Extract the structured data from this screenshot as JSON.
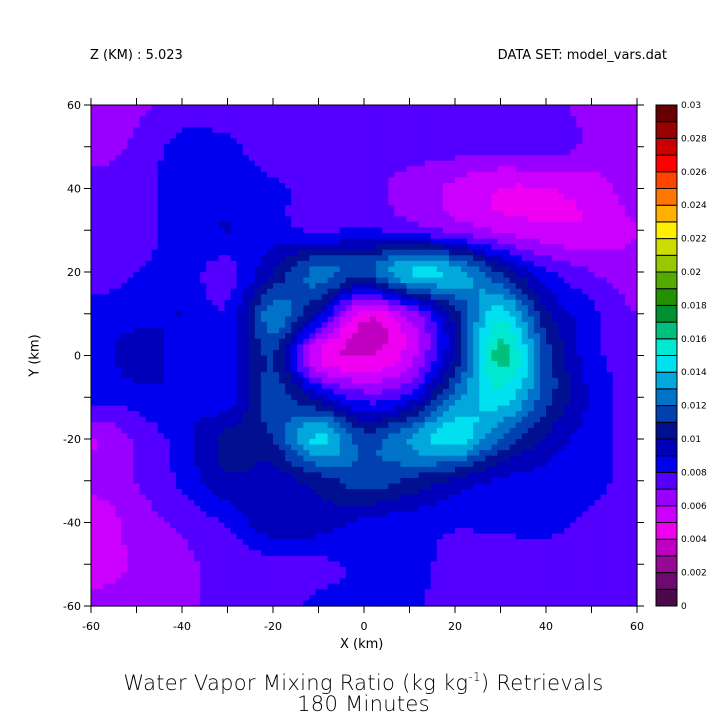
{
  "header": {
    "left": "Z (KM) : 5.023",
    "right": "DATA SET: model_vars.dat"
  },
  "chart_data": {
    "type": "heatmap",
    "subtype": "filled-contour",
    "title": "Water Vapor Mixing Ratio (kg kg-1) Retrievals",
    "title_parts": [
      "Water Vapor Mixing Ratio (kg kg",
      "-1",
      ") Retrievals"
    ],
    "subtitle": "180 Minutes",
    "xlabel": "X (km)",
    "ylabel": "Y (km)",
    "xlim": [
      -60,
      60
    ],
    "ylim": [
      -60,
      60
    ],
    "x_tick_labels": [
      "-60",
      "-40",
      "-20",
      "0",
      "20",
      "40",
      "60"
    ],
    "y_tick_labels": [
      "60",
      "40",
      "20",
      "0",
      "-20",
      "-40",
      "-60"
    ],
    "grid_x": [
      -60,
      -50,
      -40,
      -30,
      -20,
      -10,
      0,
      10,
      20,
      30,
      40,
      50,
      60
    ],
    "grid_y": [
      60,
      50,
      40,
      30,
      20,
      10,
      0,
      -10,
      -20,
      -30,
      -40,
      -50,
      -60
    ],
    "z_scale": 0.001,
    "z_grid_thousandths": [
      [
        6.5,
        6.8,
        7.5,
        7.5,
        7.5,
        8.0,
        7.5,
        7.5,
        7.5,
        7.5,
        7.5,
        6.5,
        6.5
      ],
      [
        6.5,
        7.2,
        8.3,
        8.2,
        7.5,
        7.5,
        7.5,
        7.5,
        7.4,
        7.3,
        7.5,
        6.8,
        6.5
      ],
      [
        7.5,
        7.6,
        8.6,
        8.4,
        8.2,
        7.5,
        7.3,
        6.6,
        5.8,
        5.0,
        5.0,
        5.5,
        6.5
      ],
      [
        7.5,
        7.5,
        8.5,
        9.0,
        8.5,
        7.8,
        8.2,
        7.6,
        6.8,
        5.8,
        5.3,
        5.2,
        6.0
      ],
      [
        7.5,
        8.0,
        8.5,
        7.6,
        10.0,
        12.3,
        11.5,
        14.0,
        13.6,
        10.8,
        8.2,
        7.0,
        6.4
      ],
      [
        8.3,
        8.6,
        9.0,
        8.2,
        12.5,
        9.5,
        4.5,
        6.5,
        10.5,
        14.5,
        10.2,
        8.3,
        7.0
      ],
      [
        8.3,
        9.5,
        8.6,
        8.4,
        11.0,
        5.0,
        4.0,
        5.5,
        10.2,
        16.3,
        11.5,
        8.4,
        7.6
      ],
      [
        8.2,
        8.5,
        9.0,
        8.5,
        11.5,
        9.5,
        7.5,
        8.5,
        12.5,
        14.5,
        11.5,
        8.8,
        7.6
      ],
      [
        6.0,
        7.2,
        8.5,
        10.3,
        11.0,
        14.2,
        11.5,
        13.0,
        14.5,
        12.0,
        9.8,
        8.5,
        7.6
      ],
      [
        6.3,
        7.0,
        8.2,
        9.8,
        9.5,
        10.5,
        11.5,
        10.8,
        9.8,
        8.8,
        8.6,
        8.3,
        7.6
      ],
      [
        5.2,
        6.5,
        7.2,
        8.2,
        9.8,
        9.6,
        8.8,
        8.5,
        8.2,
        8.2,
        8.3,
        7.8,
        7.5
      ],
      [
        5.3,
        6.2,
        6.8,
        7.3,
        7.6,
        7.8,
        8.2,
        8.4,
        7.6,
        7.5,
        7.5,
        7.5,
        7.5
      ],
      [
        6.5,
        6.4,
        6.8,
        7.4,
        7.6,
        8.2,
        8.3,
        8.2,
        7.5,
        7.5,
        7.4,
        7.4,
        7.4
      ]
    ],
    "colorbar": {
      "levels_min": 0,
      "levels_max": 0.03,
      "level_step": 0.001,
      "labels": [
        "0",
        "0.002",
        "0.004",
        "0.006",
        "0.008",
        "0.01",
        "0.012",
        "0.014",
        "0.016",
        "0.018",
        "0.02",
        "0.022",
        "0.024",
        "0.026",
        "0.028",
        "0.03"
      ],
      "colors": [
        "#4a0a4a",
        "#6e0a6e",
        "#960896",
        "#c000c0",
        "#f000f0",
        "#cc00ff",
        "#9900ff",
        "#5500ff",
        "#0000ee",
        "#0000bb",
        "#001090",
        "#0040b0",
        "#0072c8",
        "#00a8dc",
        "#00e0f0",
        "#00e8d0",
        "#00c080",
        "#009030",
        "#229000",
        "#55aa00",
        "#99c800",
        "#ccdd00",
        "#ffee00",
        "#ffb000",
        "#ff7700",
        "#ff4400",
        "#ff0000",
        "#cc0000",
        "#990000",
        "#660000"
      ]
    }
  }
}
